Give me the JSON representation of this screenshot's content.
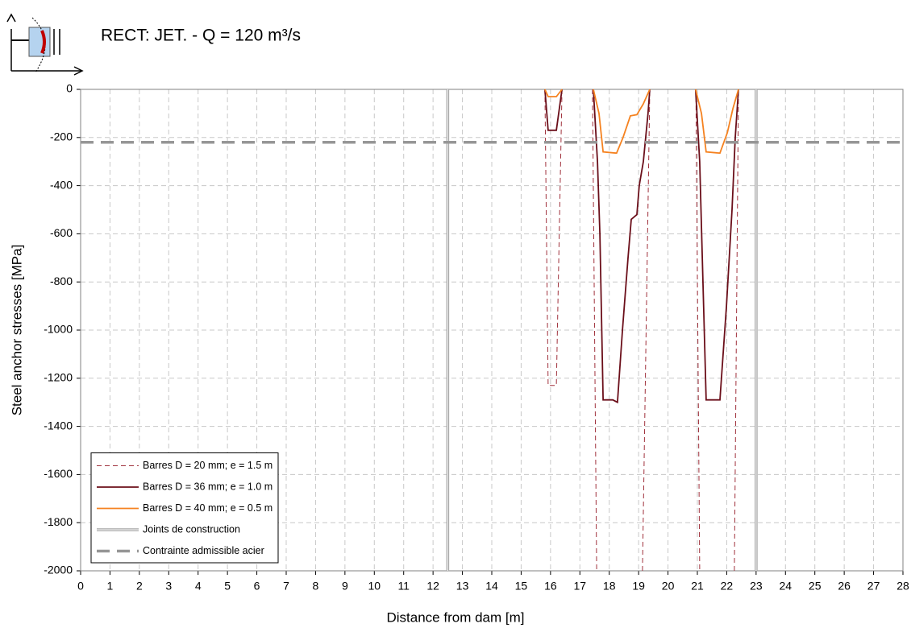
{
  "chart_data": {
    "type": "line",
    "title": "RECT: JET. - Q = 120 m³/s",
    "x_label": "Distance from dam [m]",
    "y_label": "Steel anchor stresses [MPa]",
    "xlim": [
      0,
      28
    ],
    "ylim": [
      -2000,
      0
    ],
    "xticks": [
      0,
      1,
      2,
      3,
      4,
      5,
      6,
      7,
      8,
      9,
      10,
      11,
      12,
      13,
      14,
      15,
      16,
      17,
      18,
      19,
      20,
      21,
      22,
      23,
      24,
      25,
      26,
      27,
      28
    ],
    "yticks": [
      0,
      -200,
      -400,
      -600,
      -800,
      -1000,
      -1200,
      -1400,
      -1600,
      -1800,
      -2000
    ],
    "grid": true,
    "legend": "bottom-left",
    "series": [
      {
        "name": "Barres D = 20 mm; e = 1.5 m",
        "color": "#a0313c",
        "style": "dashed",
        "x": [
          15.81,
          15.92,
          16.2,
          16.39,
          null,
          17.43,
          17.57,
          null,
          19.13,
          19.38,
          null,
          20.95,
          21.08,
          null,
          22.26,
          22.4
        ],
        "values": [
          0,
          -1230,
          -1230,
          0,
          null,
          0,
          -2000,
          null,
          -2000,
          0,
          null,
          0,
          -2000,
          null,
          -2000,
          0
        ]
      },
      {
        "name": "Barres D = 36 mm; e = 1.0 m",
        "color": "#6b0f1a",
        "style": "solid",
        "x": [
          15.81,
          15.92,
          16.2,
          16.39,
          null,
          17.46,
          17.6,
          17.68,
          17.79,
          18.12,
          18.28,
          18.45,
          18.64,
          18.75,
          18.94,
          19.02,
          19.16,
          19.32,
          19.38,
          null,
          20.94,
          21.08,
          21.3,
          21.77,
          21.99,
          22.18,
          22.29,
          22.4
        ],
        "values": [
          0,
          -170,
          -170,
          0,
          null,
          0,
          -300,
          -600,
          -1290,
          -1290,
          -1300,
          -1000,
          -700,
          -540,
          -520,
          -400,
          -300,
          -100,
          0,
          null,
          0,
          -300,
          -1290,
          -1290,
          -900,
          -500,
          -200,
          0
        ]
      },
      {
        "name": "Barres D = 40 mm; e = 0.5 m",
        "color": "#f58220",
        "style": "solid",
        "x": [
          15.81,
          15.92,
          16.2,
          16.39,
          null,
          17.46,
          17.65,
          17.79,
          18.25,
          18.47,
          18.72,
          18.94,
          19.16,
          19.38,
          null,
          20.94,
          21.14,
          21.3,
          21.77,
          22.02,
          22.21,
          22.4
        ],
        "values": [
          0,
          -30,
          -30,
          0,
          null,
          0,
          -100,
          -260,
          -265,
          -200,
          -110,
          -105,
          -60,
          0,
          null,
          0,
          -100,
          -260,
          -265,
          -180,
          -80,
          0
        ]
      },
      {
        "name": "Joints de construction",
        "color": "#a6a6a6",
        "style": "double",
        "x": [
          12.5,
          12.5,
          null,
          23,
          23
        ],
        "values": [
          0,
          -2000,
          null,
          0,
          -2000
        ]
      },
      {
        "name": "Contrainte admissible acier",
        "color": "#969696",
        "style": "dashed-thick",
        "x": [
          0,
          28
        ],
        "values": [
          -220,
          -220
        ]
      }
    ]
  }
}
